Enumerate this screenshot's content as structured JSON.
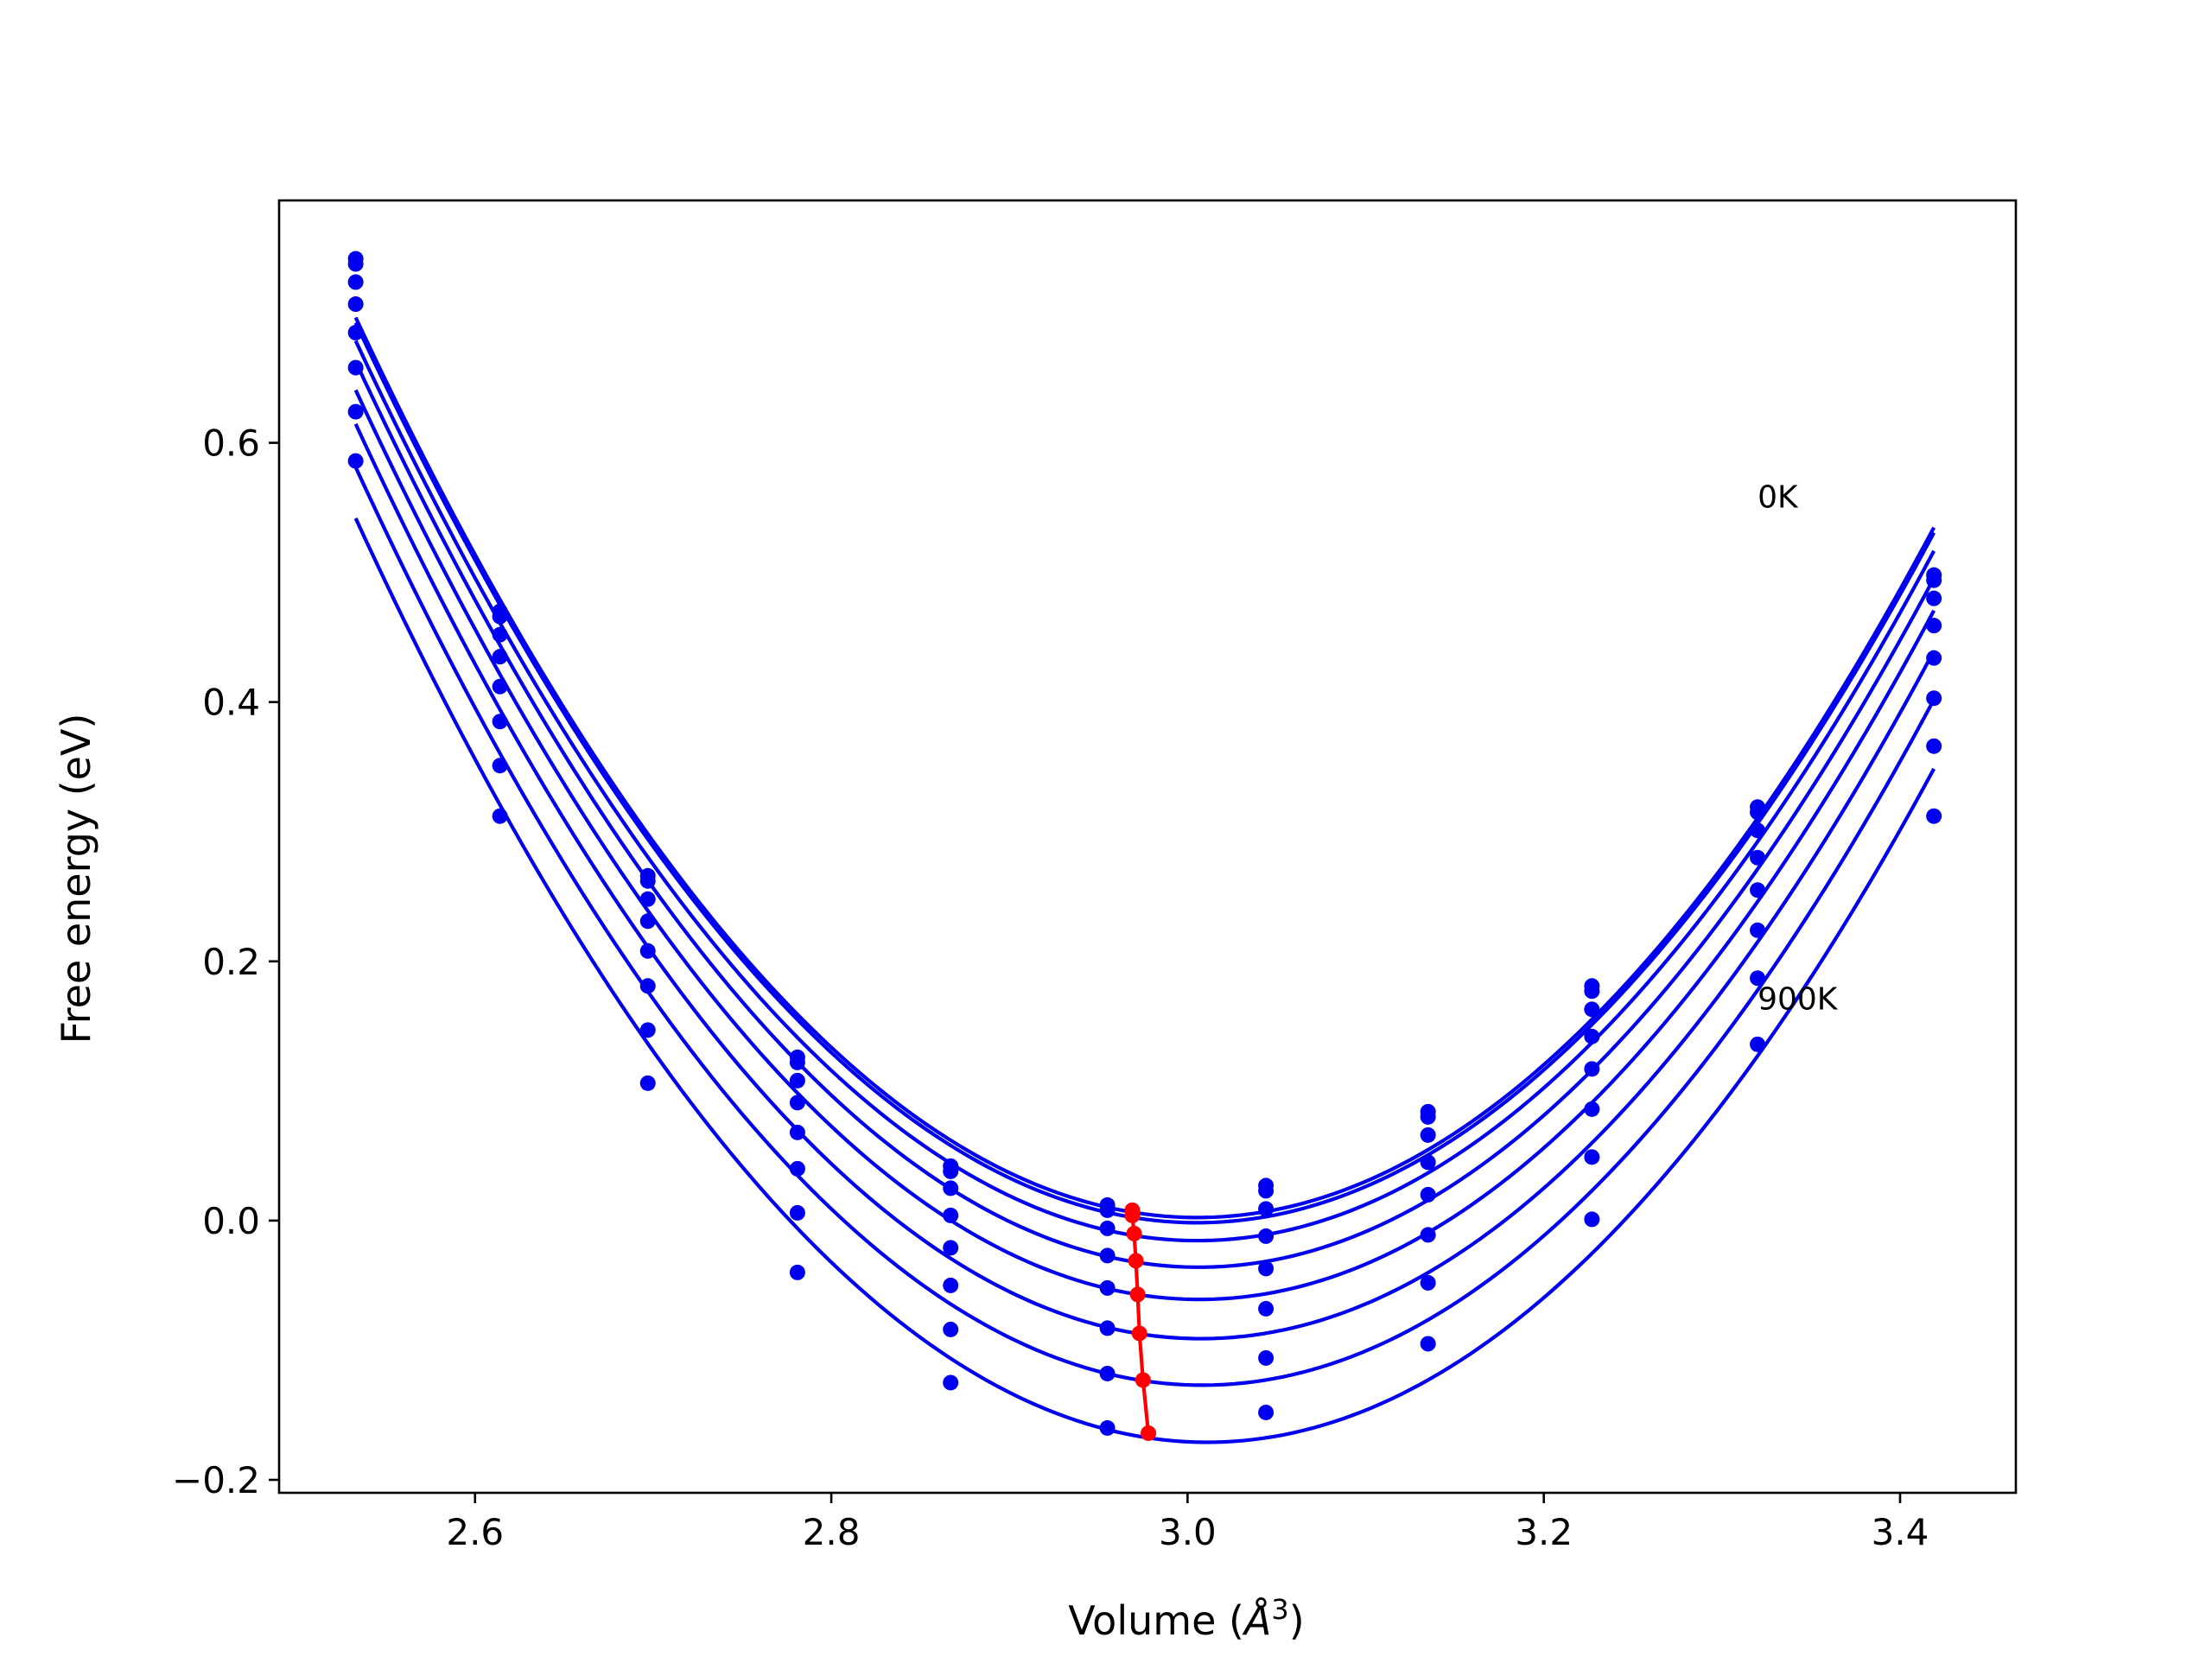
{
  "chart_data": {
    "type": "line",
    "title": "",
    "xlabel": "Volume (",
    "xlabel_unit": "Å",
    "xlabel_exp": "3",
    "xlabel_close": ")",
    "ylabel": "Free energy (eV)",
    "xlim": [
      2.49,
      3.465
    ],
    "ylim": [
      -0.21,
      0.787
    ],
    "xticks": [
      2.6,
      2.8,
      3.0,
      3.2,
      3.4
    ],
    "xtick_labels": [
      "2.6",
      "2.8",
      "3.0",
      "3.2",
      "3.4"
    ],
    "yticks": [
      -0.2,
      0.0,
      0.2,
      0.4,
      0.6
    ],
    "ytick_labels": [
      "−0.2",
      "0.0",
      "0.2",
      "0.4",
      "0.6"
    ],
    "grid": false,
    "colors": {
      "curves": "#0000ee",
      "minima": "#ff0000"
    },
    "x": [
      2.533,
      2.614,
      2.697,
      2.781,
      2.867,
      2.955,
      3.044,
      3.135,
      3.227,
      3.32,
      3.419
    ],
    "series": [
      {
        "values": [
          0.742,
          0.47,
          0.266,
          0.126,
          0.042,
          0.012,
          0.027,
          0.084,
          0.181,
          0.319,
          0.498
        ]
      },
      {
        "values": [
          0.738,
          0.466,
          0.262,
          0.122,
          0.038,
          0.008,
          0.023,
          0.08,
          0.177,
          0.315,
          0.494
        ]
      },
      {
        "values": [
          0.724,
          0.452,
          0.248,
          0.108,
          0.025,
          -0.006,
          0.009,
          0.066,
          0.163,
          0.301,
          0.48
        ]
      },
      {
        "values": [
          0.707,
          0.435,
          0.231,
          0.091,
          0.004,
          -0.027,
          -0.012,
          0.045,
          0.142,
          0.28,
          0.459
        ]
      },
      {
        "values": [
          0.685,
          0.412,
          0.208,
          0.068,
          -0.021,
          -0.052,
          -0.037,
          0.02,
          0.117,
          0.255,
          0.434
        ]
      },
      {
        "values": [
          0.658,
          0.385,
          0.181,
          0.04,
          -0.05,
          -0.083,
          -0.068,
          -0.011,
          0.086,
          0.224,
          0.403
        ]
      },
      {
        "values": [
          0.624,
          0.351,
          0.147,
          0.006,
          -0.084,
          -0.118,
          -0.106,
          -0.048,
          0.049,
          0.187,
          0.366
        ]
      },
      {
        "values": [
          0.586,
          0.312,
          0.106,
          -0.04,
          -0.125,
          -0.16,
          -0.148,
          -0.095,
          0.001,
          0.136,
          0.312
        ]
      }
    ],
    "minima": {
      "x": [
        2.969,
        2.969,
        2.97,
        2.971,
        2.972,
        2.973,
        2.975,
        2.978
      ],
      "values": [
        0.008,
        0.004,
        -0.01,
        -0.031,
        -0.057,
        -0.087,
        -0.123,
        -0.164
      ]
    },
    "annotations": [
      {
        "text": "0K",
        "x": 3.32,
        "y": 0.55
      },
      {
        "text": "900K",
        "x": 3.32,
        "y": 0.163
      }
    ]
  }
}
